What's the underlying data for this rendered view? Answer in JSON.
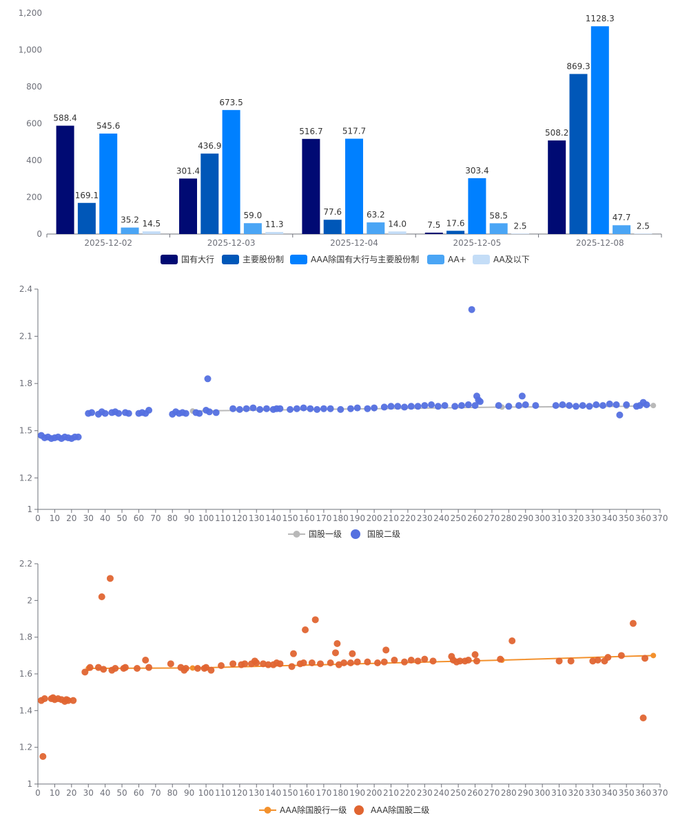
{
  "chart_data": [
    {
      "type": "bar",
      "categories": [
        "2025-12-02",
        "2025-12-03",
        "2025-12-04",
        "2025-12-05",
        "2025-12-08"
      ],
      "ylim": [
        0,
        1200
      ],
      "yticks": [
        0,
        200,
        400,
        600,
        800,
        1000,
        1200
      ],
      "ytick_labels": [
        "0",
        "200",
        "400",
        "600",
        "800",
        "1,000",
        "1,200"
      ],
      "series": [
        {
          "name": "国有大行",
          "color": "#000a73",
          "values": [
            588.4,
            301.4,
            516.7,
            7.5,
            508.2
          ],
          "labels": [
            "588.4",
            "301.4",
            "516.7",
            "7.5",
            "508.2"
          ]
        },
        {
          "name": "主要股份制",
          "color": "#0057b8",
          "values": [
            169.1,
            436.9,
            77.6,
            17.6,
            869.3
          ],
          "labels": [
            "169.1",
            "436.9",
            "77.6",
            "17.6",
            "869.3"
          ]
        },
        {
          "name": "AAA除国有大行与主要股份制",
          "color": "#0080ff",
          "values": [
            545.6,
            673.5,
            517.7,
            303.4,
            1128.3
          ],
          "labels": [
            "545.6",
            "673.5",
            "517.7",
            "303.4",
            "1128.3"
          ]
        },
        {
          "name": "AA+",
          "color": "#4aa5f5",
          "values": [
            35.2,
            59.0,
            63.2,
            58.5,
            47.7
          ],
          "labels": [
            "35.2",
            "59.0",
            "63.2",
            "58.5",
            "47.7"
          ]
        },
        {
          "name": "AA及以下",
          "color": "#c4ddf7",
          "values": [
            14.5,
            11.3,
            14.0,
            2.5,
            2.5
          ],
          "labels": [
            "14.5",
            "11.3",
            "14.0",
            "2.5",
            "2.5"
          ]
        }
      ]
    },
    {
      "type": "scatter",
      "xlim": [
        0,
        370
      ],
      "xticks": [
        0,
        10,
        20,
        30,
        40,
        50,
        60,
        70,
        80,
        90,
        100,
        110,
        120,
        130,
        140,
        150,
        160,
        170,
        180,
        190,
        200,
        210,
        220,
        230,
        240,
        250,
        260,
        270,
        280,
        290,
        300,
        310,
        320,
        330,
        340,
        350,
        360,
        370
      ],
      "ylim": [
        1,
        2.4
      ],
      "yticks": [
        1,
        1.2,
        1.5,
        1.8,
        2.1,
        2.4
      ],
      "ytick_labels": [
        "1",
        "1.2",
        "1.5",
        "1.8",
        "2.1",
        "2.4"
      ],
      "series": [
        {
          "name": "国股一级",
          "kind": "line",
          "color": "#b9b9b9",
          "x": [
            92,
            200,
            276,
            350,
            366
          ],
          "y": [
            1.625,
            1.64,
            1.65,
            1.655,
            1.66
          ]
        },
        {
          "name": "国股二级",
          "kind": "scatter",
          "color": "#5470e0",
          "x": [
            2,
            4,
            6,
            8,
            10,
            12,
            14,
            16,
            18,
            20,
            22,
            24,
            30,
            32,
            36,
            38,
            40,
            44,
            46,
            48,
            52,
            54,
            60,
            62,
            64,
            66,
            80,
            82,
            84,
            86,
            88,
            94,
            96,
            100,
            101,
            102,
            106,
            116,
            120,
            124,
            128,
            132,
            136,
            140,
            142,
            144,
            150,
            154,
            158,
            162,
            166,
            170,
            174,
            180,
            186,
            190,
            196,
            200,
            206,
            210,
            214,
            218,
            222,
            226,
            230,
            234,
            238,
            242,
            248,
            252,
            256,
            258,
            260,
            261,
            262,
            263,
            274,
            280,
            286,
            288,
            290,
            296,
            308,
            312,
            316,
            320,
            324,
            328,
            332,
            336,
            340,
            344,
            346,
            350,
            356,
            358,
            360,
            362
          ],
          "y": [
            1.47,
            1.455,
            1.46,
            1.45,
            1.455,
            1.46,
            1.45,
            1.46,
            1.455,
            1.45,
            1.46,
            1.46,
            1.61,
            1.615,
            1.605,
            1.62,
            1.61,
            1.615,
            1.62,
            1.61,
            1.615,
            1.61,
            1.61,
            1.615,
            1.61,
            1.63,
            1.605,
            1.62,
            1.61,
            1.615,
            1.61,
            1.615,
            1.61,
            1.63,
            1.83,
            1.62,
            1.615,
            1.64,
            1.635,
            1.64,
            1.645,
            1.635,
            1.64,
            1.635,
            1.64,
            1.64,
            1.635,
            1.64,
            1.645,
            1.64,
            1.635,
            1.64,
            1.64,
            1.635,
            1.64,
            1.645,
            1.64,
            1.645,
            1.65,
            1.655,
            1.655,
            1.65,
            1.655,
            1.655,
            1.66,
            1.665,
            1.655,
            1.66,
            1.655,
            1.66,
            1.665,
            2.27,
            1.66,
            1.72,
            1.695,
            1.685,
            1.66,
            1.655,
            1.66,
            1.72,
            1.665,
            1.66,
            1.66,
            1.665,
            1.66,
            1.655,
            1.66,
            1.655,
            1.665,
            1.66,
            1.67,
            1.665,
            1.6,
            1.665,
            1.655,
            1.66,
            1.68,
            1.665
          ]
        }
      ]
    },
    {
      "type": "scatter",
      "xlim": [
        0,
        370
      ],
      "xticks": [
        0,
        10,
        20,
        30,
        40,
        50,
        60,
        70,
        80,
        90,
        100,
        110,
        120,
        130,
        140,
        150,
        160,
        170,
        180,
        190,
        200,
        210,
        220,
        230,
        240,
        250,
        260,
        270,
        280,
        290,
        300,
        310,
        320,
        330,
        340,
        350,
        360,
        370
      ],
      "ylim": [
        1,
        2.2
      ],
      "yticks": [
        1,
        1.2,
        1.4,
        1.6,
        1.8,
        2,
        2.2
      ],
      "ytick_labels": [
        "1",
        "1.2",
        "1.4",
        "1.6",
        "1.8",
        "2",
        "2.2"
      ],
      "series": [
        {
          "name": "AAA除国股行一级",
          "kind": "line",
          "color": "#f3912d",
          "x": [
            30,
            92,
            276,
            366
          ],
          "y": [
            1.63,
            1.632,
            1.675,
            1.7
          ]
        },
        {
          "name": "AAA除国股二级",
          "kind": "scatter",
          "color": "#e06531",
          "x": [
            2,
            3,
            4,
            8,
            9,
            10,
            12,
            14,
            16,
            17,
            18,
            21,
            28,
            31,
            36,
            38,
            39,
            43,
            44,
            46,
            51,
            52,
            59,
            64,
            66,
            79,
            85,
            87,
            88,
            95,
            99,
            100,
            103,
            109,
            116,
            121,
            123,
            127,
            129,
            130,
            134,
            137,
            140,
            142,
            144,
            151,
            152,
            156,
            158,
            159,
            163,
            165,
            168,
            174,
            177,
            178,
            179,
            182,
            186,
            187,
            190,
            196,
            202,
            206,
            207,
            212,
            218,
            222,
            226,
            230,
            235,
            246,
            247,
            249,
            251,
            254,
            256,
            260,
            261,
            275,
            282,
            310,
            317,
            330,
            333,
            337,
            339,
            347,
            354,
            360,
            361
          ],
          "y": [
            1.455,
            1.15,
            1.465,
            1.465,
            1.47,
            1.46,
            1.465,
            1.46,
            1.45,
            1.46,
            1.455,
            1.455,
            1.61,
            1.635,
            1.635,
            2.02,
            1.625,
            2.12,
            1.62,
            1.63,
            1.63,
            1.635,
            1.63,
            1.675,
            1.635,
            1.655,
            1.635,
            1.62,
            1.63,
            1.63,
            1.63,
            1.635,
            1.62,
            1.645,
            1.655,
            1.65,
            1.655,
            1.655,
            1.67,
            1.66,
            1.655,
            1.65,
            1.65,
            1.66,
            1.655,
            1.64,
            1.71,
            1.655,
            1.66,
            1.84,
            1.66,
            1.895,
            1.655,
            1.66,
            1.715,
            1.765,
            1.65,
            1.66,
            1.66,
            1.71,
            1.665,
            1.665,
            1.66,
            1.665,
            1.73,
            1.675,
            1.665,
            1.675,
            1.67,
            1.68,
            1.67,
            1.695,
            1.675,
            1.665,
            1.67,
            1.67,
            1.675,
            1.705,
            1.67,
            1.68,
            1.78,
            1.67,
            1.67,
            1.67,
            1.675,
            1.67,
            1.69,
            1.7,
            1.875,
            1.36,
            1.685
          ]
        }
      ]
    }
  ]
}
